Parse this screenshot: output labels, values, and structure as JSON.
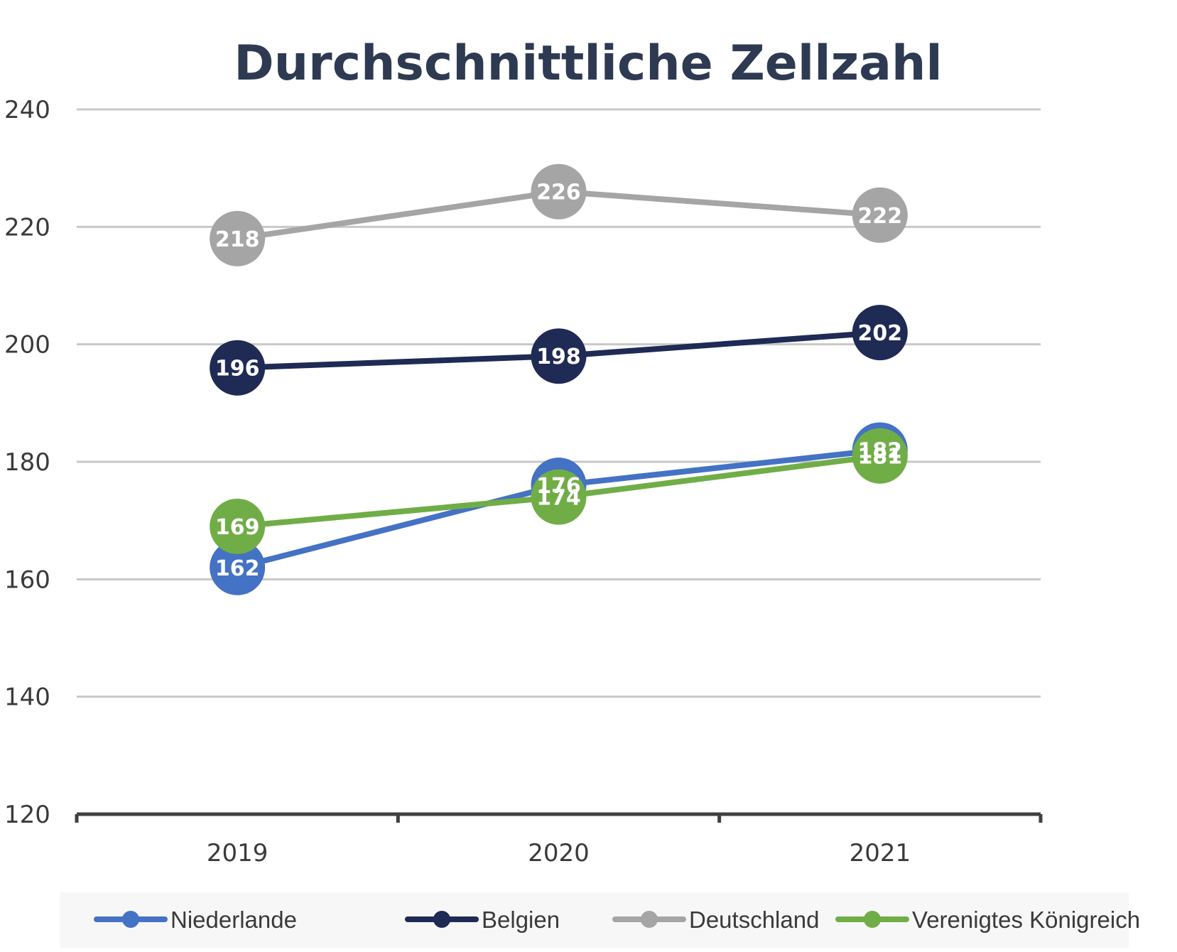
{
  "chart_data": {
    "type": "line",
    "title": "Durchschnittliche Zellzahl",
    "categories": [
      "2019",
      "2020",
      "2021"
    ],
    "ylim": [
      120,
      240
    ],
    "yticks": [
      120,
      140,
      160,
      180,
      200,
      220,
      240
    ],
    "xlabel": "",
    "ylabel": "",
    "grid": true,
    "legend": "bottom",
    "series": [
      {
        "name": "Deutschland",
        "color": "#a5a5a5",
        "values": [
          218,
          226,
          222
        ]
      },
      {
        "name": "Belgien",
        "color": "#1f2a55",
        "values": [
          196,
          198,
          202
        ]
      },
      {
        "name": "Niederlande",
        "color": "#4472c4",
        "values": [
          162,
          176,
          182
        ]
      },
      {
        "name": "Verenigtes Königreich",
        "color": "#70ad47",
        "values": [
          169,
          174,
          181
        ]
      }
    ],
    "legend_order": [
      "Niederlande",
      "Belgien",
      "Deutschland",
      "Verenigtes Königreich"
    ]
  }
}
